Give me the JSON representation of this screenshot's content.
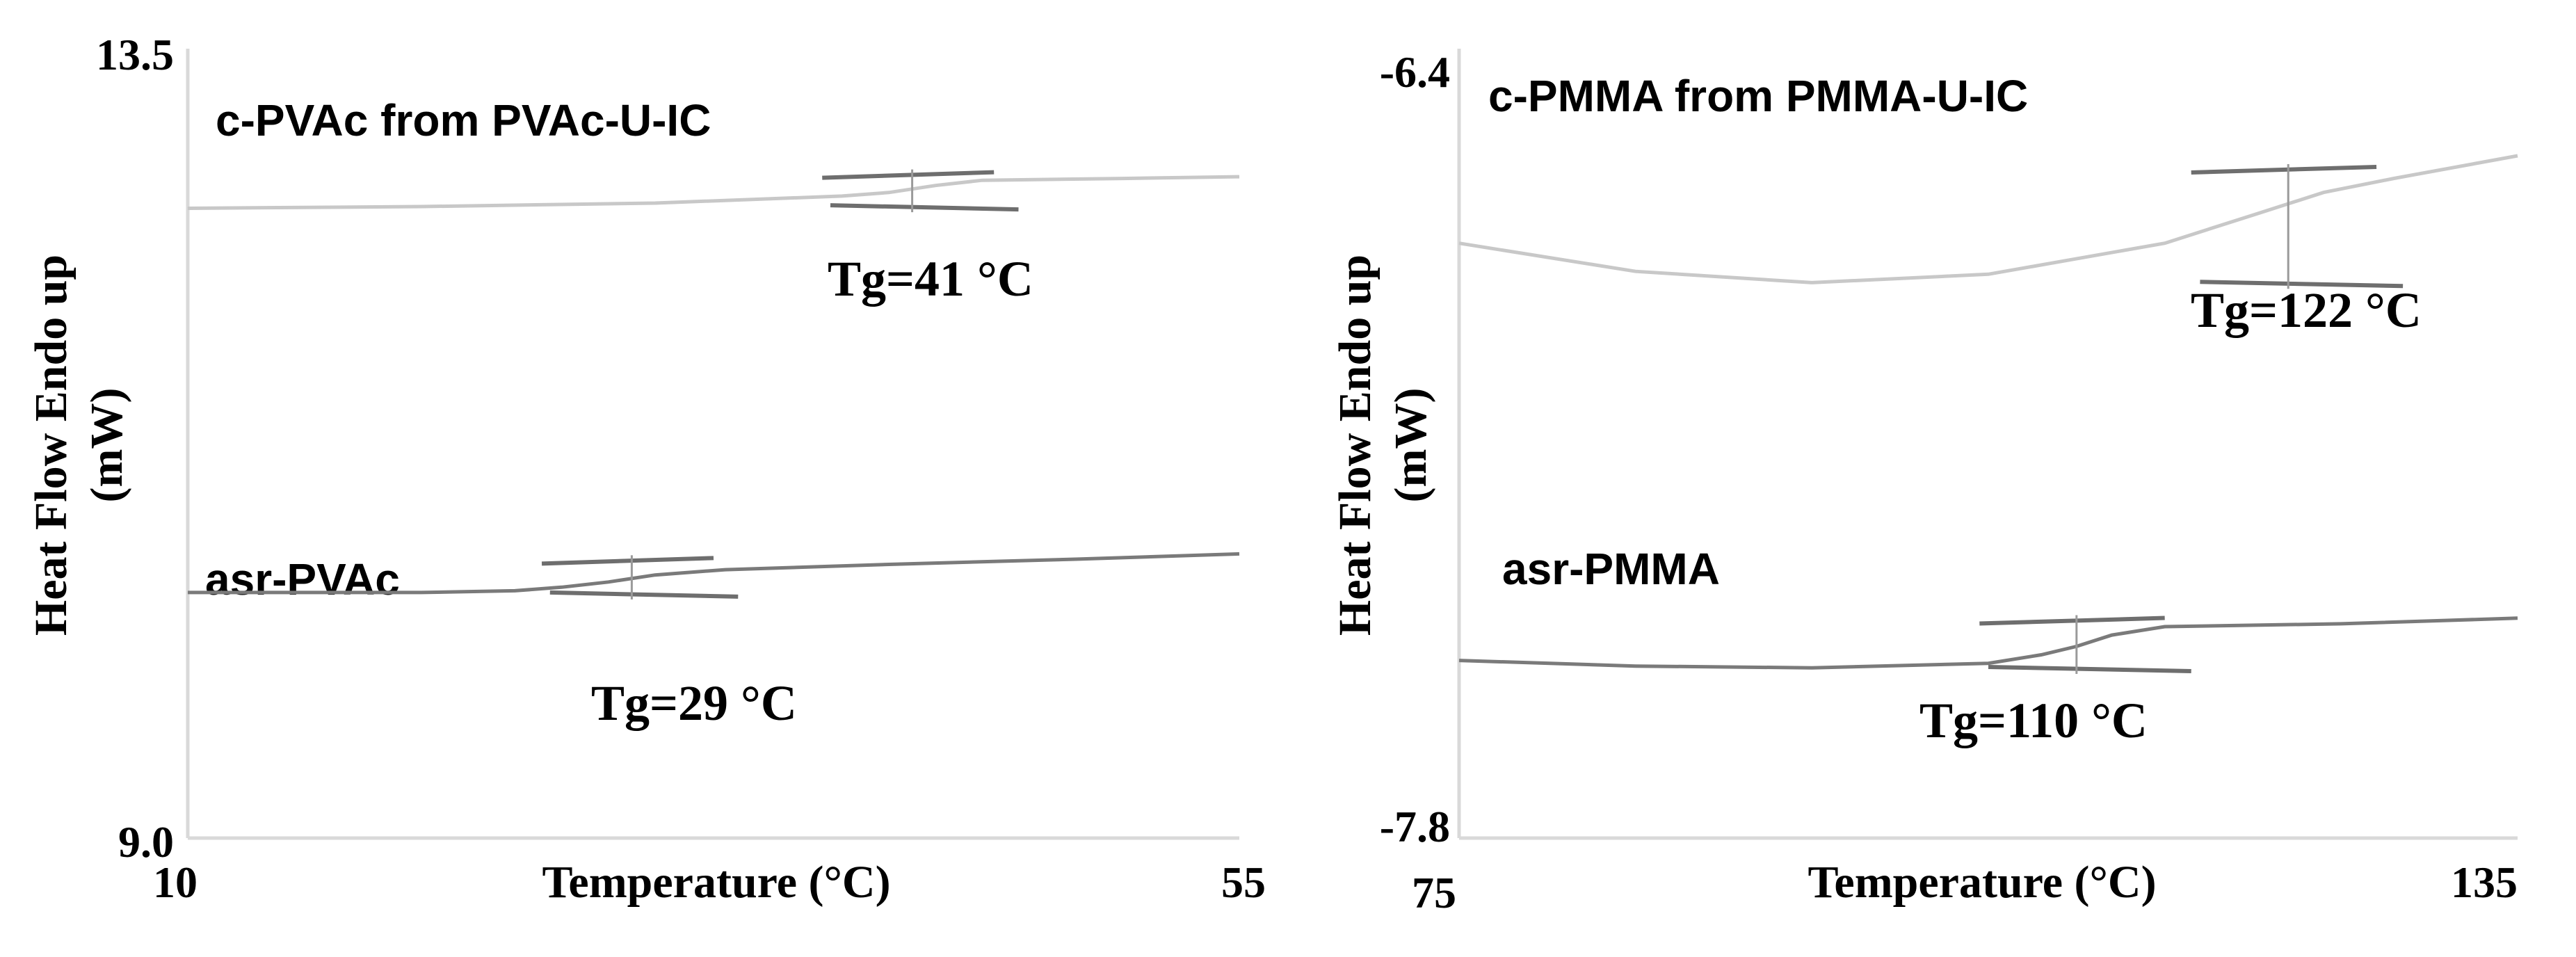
{
  "chart_data": [
    {
      "type": "line",
      "ylabel": "Heat Flow Endo up",
      "ylabel_unit": "(mW)",
      "xlabel": "Temperature (°C)",
      "xlim": [
        10,
        55
      ],
      "ylim": [
        9.0,
        13.5
      ],
      "x_tick_labels": [
        "10",
        "55"
      ],
      "y_tick_labels": [
        "13.5",
        "9.0"
      ],
      "series": [
        {
          "label": "c-PVAc from PVAc-U-IC",
          "tg_label": "Tg=41 °C",
          "tg": 41,
          "color": "#c8c8c8",
          "x": [
            10,
            20,
            30,
            38,
            40,
            42,
            44,
            50,
            55
          ],
          "y": [
            12.59,
            12.6,
            12.62,
            12.66,
            12.68,
            12.72,
            12.75,
            12.76,
            12.77
          ]
        },
        {
          "label": "asr-PVAc",
          "tg_label": "Tg=29 °C",
          "tg": 29,
          "color": "#7a7a7a",
          "x": [
            10,
            15,
            20,
            24,
            26,
            28,
            30,
            33,
            40,
            48,
            55
          ],
          "y": [
            10.4,
            10.4,
            10.4,
            10.41,
            10.43,
            10.46,
            10.5,
            10.53,
            10.56,
            10.59,
            10.62
          ]
        }
      ]
    },
    {
      "type": "line",
      "ylabel": "Heat Flow Endo up",
      "ylabel_unit": "(mW)",
      "xlabel": "Temperature (°C)",
      "xlim": [
        75,
        135
      ],
      "ylim": [
        -7.8,
        -6.4
      ],
      "x_tick_labels": [
        "75",
        "135"
      ],
      "y_tick_labels": [
        "-6.4",
        "-7.8"
      ],
      "series": [
        {
          "label": "c-PMMA from PMMA-U-IC",
          "tg_label": "Tg=122 °C",
          "tg": 122,
          "color": "#c8c8c8",
          "x": [
            75,
            85,
            95,
            105,
            115,
            120,
            124,
            128,
            135
          ],
          "y": [
            -6.745,
            -6.795,
            -6.815,
            -6.8,
            -6.745,
            -6.695,
            -6.655,
            -6.63,
            -6.59
          ]
        },
        {
          "label": "asr-PMMA",
          "tg_label": "Tg=110 °C",
          "tg": 110,
          "color": "#7a7a7a",
          "x": [
            75,
            85,
            95,
            105,
            108,
            110,
            112,
            115,
            125,
            135
          ],
          "y": [
            -7.485,
            -7.495,
            -7.498,
            -7.49,
            -7.475,
            -7.46,
            -7.44,
            -7.425,
            -7.42,
            -7.41
          ]
        }
      ]
    }
  ]
}
